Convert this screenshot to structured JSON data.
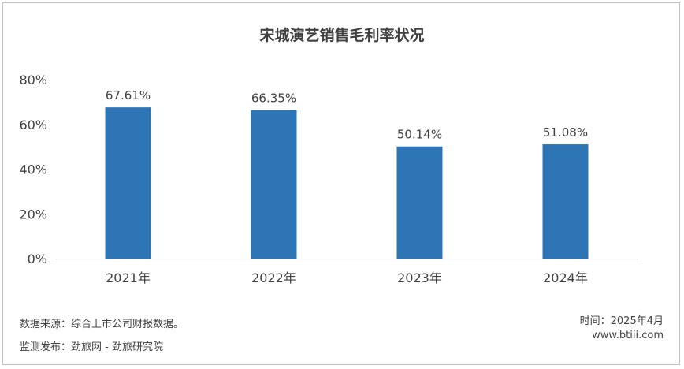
{
  "chart_data": {
    "type": "bar",
    "title": "宋城演艺销售毛利率状况",
    "categories": [
      "2021年",
      "2022年",
      "2023年",
      "2024年"
    ],
    "values": [
      67.61,
      66.35,
      50.14,
      51.08
    ],
    "value_labels": [
      "67.61%",
      "66.35%",
      "50.14%",
      "51.08%"
    ],
    "ylim": [
      0,
      80
    ],
    "yticks": [
      0,
      20,
      40,
      60,
      80
    ],
    "ytick_labels": [
      "0%",
      "20%",
      "40%",
      "60%",
      "80%"
    ],
    "xlabel": "",
    "ylabel": "",
    "grid": false,
    "bar_color": "#2e75b6"
  },
  "footer": {
    "source": "数据来源：综合上市公司财报数据。",
    "publisher": "监测发布：劲旅网 - 劲旅研究院",
    "time": "时间：2025年4月",
    "url": "www.btiii.com"
  }
}
